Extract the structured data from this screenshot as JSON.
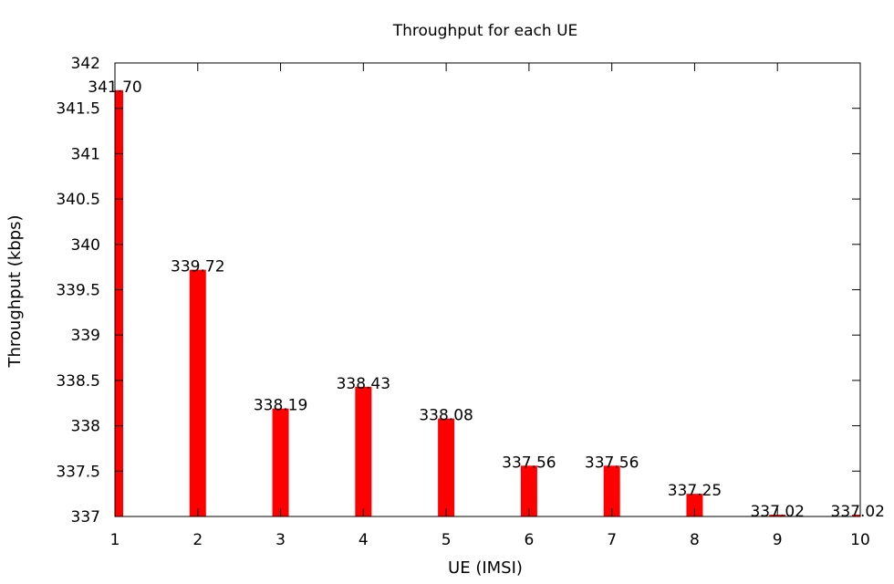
{
  "chart_data": {
    "type": "bar",
    "title": "Throughput for each UE",
    "xlabel": "UE (IMSI)",
    "ylabel": "Throughput (kbps)",
    "categories": [
      1,
      2,
      3,
      4,
      5,
      6,
      7,
      8,
      9,
      10
    ],
    "values": [
      341.7,
      339.72,
      338.19,
      338.43,
      338.08,
      337.56,
      337.56,
      337.25,
      337.02,
      337.02
    ],
    "data_labels": [
      "341.70",
      "339.72",
      "338.19",
      "338.43",
      "338.08",
      "337.56",
      "337.56",
      "337.25",
      "337.02",
      "337.02"
    ],
    "x_ticks": [
      "1",
      "2",
      "3",
      "4",
      "5",
      "6",
      "7",
      "8",
      "9",
      "10"
    ],
    "y_ticks": [
      "337",
      "337.5",
      "338",
      "338.5",
      "339",
      "339.5",
      "340",
      "340.5",
      "341",
      "341.5",
      "342"
    ],
    "y_tick_values": [
      337,
      337.5,
      338,
      338.5,
      339,
      339.5,
      340,
      340.5,
      341,
      341.5,
      342
    ],
    "xlim": [
      1,
      10
    ],
    "ylim": [
      337,
      342
    ],
    "grid": false,
    "legend": "none",
    "bar_color": "#ff0000"
  }
}
